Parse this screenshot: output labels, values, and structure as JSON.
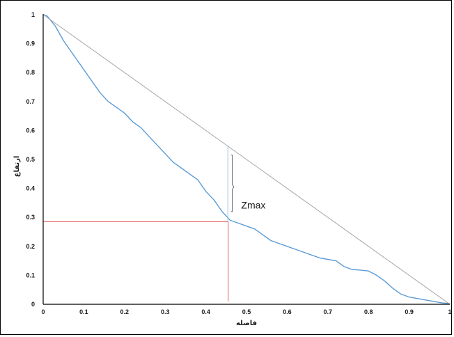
{
  "chart_data": {
    "type": "line",
    "title": "",
    "xlabel": "فاصله",
    "ylabel": "ارتفاع",
    "xlim": [
      0,
      1
    ],
    "ylim": [
      0,
      1
    ],
    "x_ticks": [
      "0",
      "0.1",
      "0.2",
      "0.3",
      "0.4",
      "0.5",
      "0.6",
      "0.7",
      "0.8",
      "0.9",
      "1"
    ],
    "y_ticks": [
      "0",
      "0.1",
      "0.2",
      "0.3",
      "0.4",
      "0.5",
      "0.6",
      "0.7",
      "0.8",
      "0.9",
      "1"
    ],
    "grid": false,
    "series": [
      {
        "color": "#5b9bd5",
        "x": [
          0,
          0.01,
          0.03,
          0.05,
          0.07,
          0.09,
          0.1,
          0.12,
          0.14,
          0.16,
          0.18,
          0.2,
          0.22,
          0.24,
          0.26,
          0.28,
          0.3,
          0.32,
          0.34,
          0.36,
          0.38,
          0.4,
          0.42,
          0.44,
          0.46,
          0.48,
          0.5,
          0.52,
          0.54,
          0.56,
          0.58,
          0.6,
          0.62,
          0.64,
          0.66,
          0.68,
          0.7,
          0.72,
          0.74,
          0.76,
          0.78,
          0.8,
          0.82,
          0.84,
          0.86,
          0.88,
          0.9,
          0.92,
          0.94,
          0.96,
          0.98,
          1
        ],
        "y": [
          1,
          0.995,
          0.96,
          0.91,
          0.87,
          0.83,
          0.81,
          0.77,
          0.73,
          0.7,
          0.68,
          0.66,
          0.63,
          0.61,
          0.58,
          0.55,
          0.52,
          0.49,
          0.47,
          0.45,
          0.43,
          0.39,
          0.36,
          0.32,
          0.29,
          0.28,
          0.27,
          0.26,
          0.24,
          0.22,
          0.21,
          0.2,
          0.19,
          0.18,
          0.17,
          0.16,
          0.155,
          0.15,
          0.13,
          0.12,
          0.118,
          0.115,
          0.1,
          0.08,
          0.055,
          0.035,
          0.025,
          0.02,
          0.015,
          0.01,
          0.005,
          0.002
        ]
      },
      {
        "color": "#a6a6a6",
        "x": [
          0,
          1
        ],
        "y": [
          1,
          0
        ]
      }
    ],
    "guides": {
      "color": "#e06060",
      "point": [
        0.455,
        0.285
      ]
    },
    "annotations": [
      {
        "text": "Zmax"
      }
    ]
  }
}
